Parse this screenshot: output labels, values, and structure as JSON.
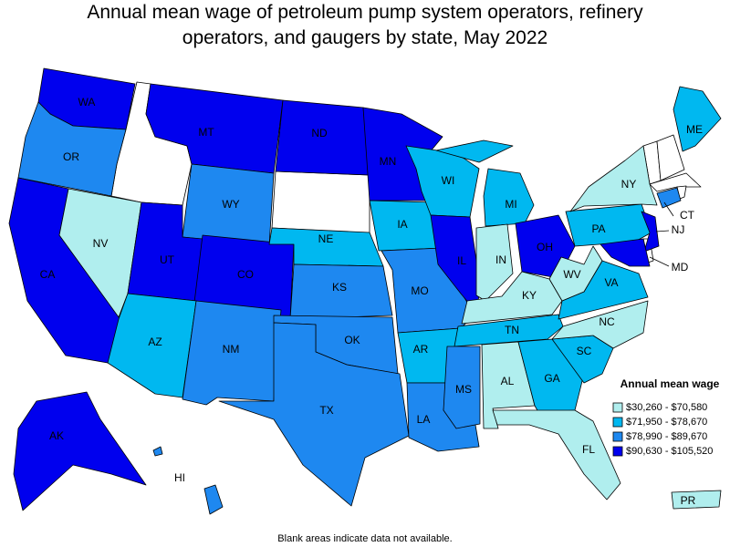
{
  "title": [
    "Annual mean wage of petroleum pump system operators, refinery",
    "operators, and gaugers by state, May 2022"
  ],
  "legend": {
    "title": "Annual mean wage",
    "items": [
      {
        "label": "$30,260 - $70,580",
        "color": "#b0eeee"
      },
      {
        "label": "$71,950 - $78,670",
        "color": "#00b8f0"
      },
      {
        "label": "$78,990 - $89,670",
        "color": "#1e88f0"
      },
      {
        "label": "$90,630 - $105,520",
        "color": "#0000ee"
      }
    ]
  },
  "states": [
    {
      "abbr": "WA",
      "class": 3
    },
    {
      "abbr": "OR",
      "class": 2
    },
    {
      "abbr": "CA",
      "class": 3
    },
    {
      "abbr": "NV",
      "class": 0
    },
    {
      "abbr": "MT",
      "class": 3
    },
    {
      "abbr": "WY",
      "class": 2
    },
    {
      "abbr": "UT",
      "class": 3
    },
    {
      "abbr": "CO",
      "class": 3
    },
    {
      "abbr": "AZ",
      "class": 1
    },
    {
      "abbr": "NM",
      "class": 2
    },
    {
      "abbr": "ND",
      "class": 3
    },
    {
      "abbr": "NE",
      "class": 1
    },
    {
      "abbr": "KS",
      "class": 2
    },
    {
      "abbr": "OK",
      "class": 2
    },
    {
      "abbr": "TX",
      "class": 2
    },
    {
      "abbr": "MN",
      "class": 3
    },
    {
      "abbr": "IA",
      "class": 1
    },
    {
      "abbr": "MO",
      "class": 2
    },
    {
      "abbr": "AR",
      "class": 1
    },
    {
      "abbr": "LA",
      "class": 2
    },
    {
      "abbr": "WI",
      "class": 1
    },
    {
      "abbr": "IL",
      "class": 3
    },
    {
      "abbr": "MI",
      "class": 1
    },
    {
      "abbr": "IN",
      "class": 0
    },
    {
      "abbr": "OH",
      "class": 3
    },
    {
      "abbr": "KY",
      "class": 0
    },
    {
      "abbr": "TN",
      "class": 1
    },
    {
      "abbr": "MS",
      "class": 2
    },
    {
      "abbr": "AL",
      "class": 0
    },
    {
      "abbr": "GA",
      "class": 1
    },
    {
      "abbr": "FL",
      "class": 0
    },
    {
      "abbr": "SC",
      "class": 1
    },
    {
      "abbr": "NC",
      "class": 0
    },
    {
      "abbr": "VA",
      "class": 1
    },
    {
      "abbr": "WV",
      "class": 0
    },
    {
      "abbr": "PA",
      "class": 1
    },
    {
      "abbr": "NY",
      "class": 0
    },
    {
      "abbr": "ME",
      "class": 1
    },
    {
      "abbr": "CT",
      "class": 2
    },
    {
      "abbr": "NJ",
      "class": 3
    },
    {
      "abbr": "MD",
      "class": 3
    },
    {
      "abbr": "AK",
      "class": 3
    },
    {
      "abbr": "HI",
      "class": 2
    },
    {
      "abbr": "PR",
      "class": 0
    }
  ],
  "note": "Blank areas indicate data not available."
}
